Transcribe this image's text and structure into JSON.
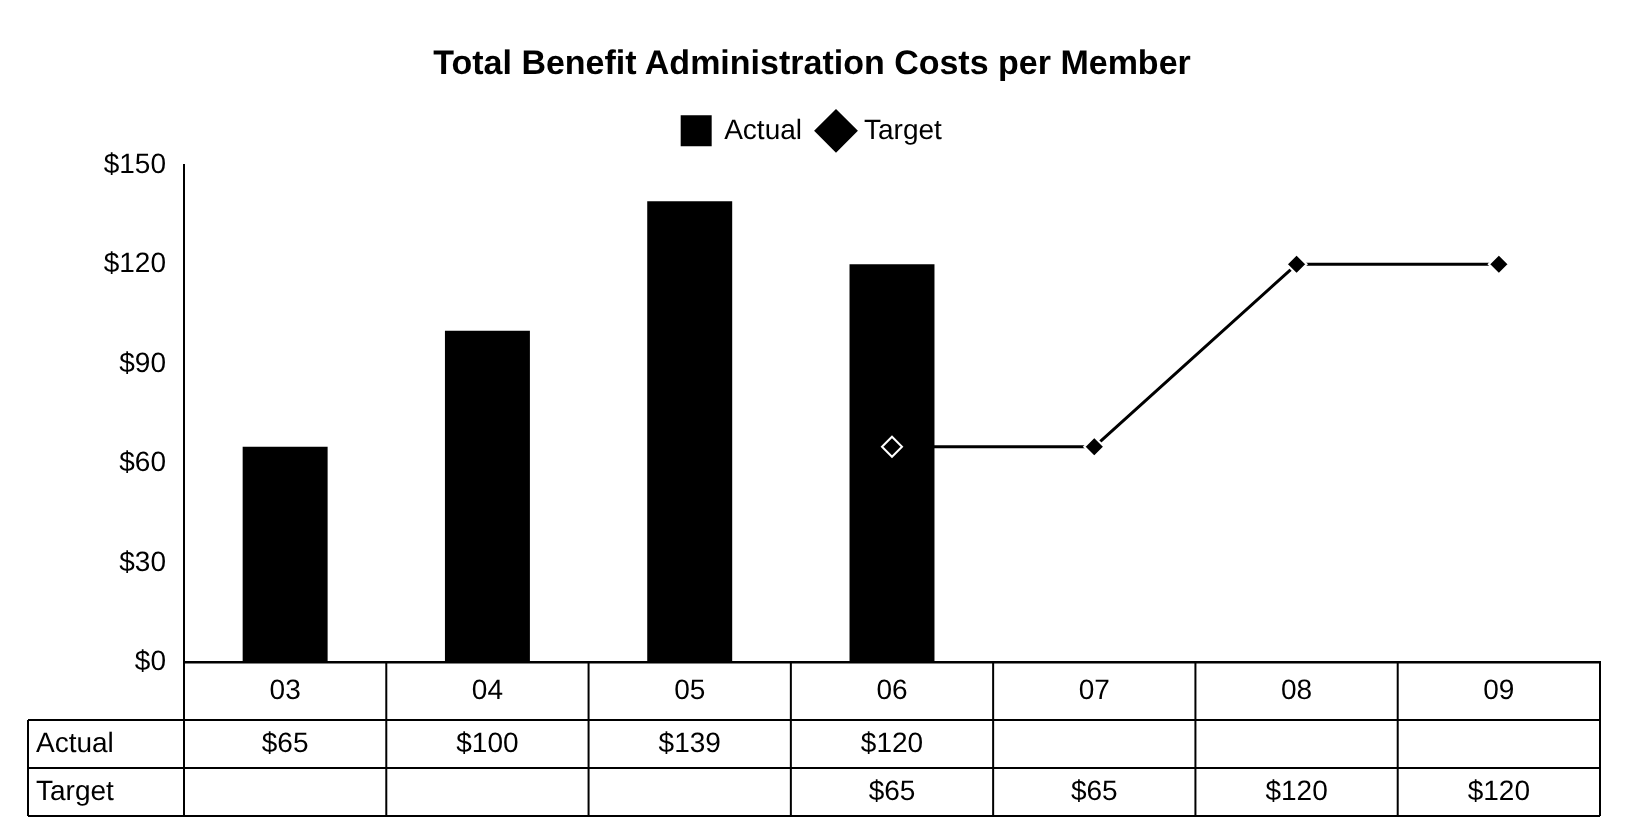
{
  "chart_data": {
    "type": "bar",
    "title": "Total Benefit Administration Costs per Member",
    "categories": [
      "03",
      "04",
      "05",
      "06",
      "07",
      "08",
      "09"
    ],
    "series": [
      {
        "name": "Actual",
        "color": "#000000",
        "values": [
          65,
          100,
          139,
          120,
          null,
          null,
          null
        ],
        "value_labels": [
          "$65",
          "$100",
          "$139",
          "$120",
          null,
          null,
          null
        ]
      },
      {
        "name": "Target",
        "type": "line",
        "color": "#000000",
        "values": [
          null,
          null,
          null,
          65,
          65,
          120,
          120
        ],
        "value_labels": [
          null,
          null,
          null,
          "$65",
          "$65",
          "$120",
          "$120"
        ]
      }
    ],
    "ylim": [
      0,
      150
    ],
    "yticks": [
      {
        "value": 0,
        "label": "$0"
      },
      {
        "value": 30,
        "label": "$30"
      },
      {
        "value": 60,
        "label": "$60"
      },
      {
        "value": 90,
        "label": "$90"
      },
      {
        "value": 120,
        "label": "$120"
      },
      {
        "value": 150,
        "label": "$150"
      }
    ],
    "grid": false,
    "legend": "top",
    "marker": "diamond",
    "line_style": "solid"
  }
}
